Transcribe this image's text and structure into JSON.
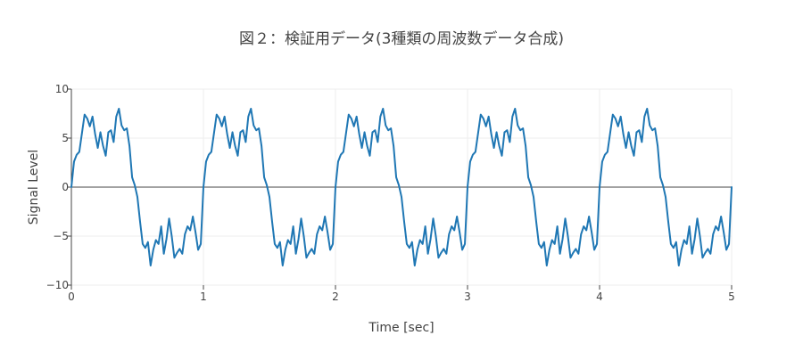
{
  "chart_data": {
    "type": "line",
    "title": "図２：検証用データ(3種類の周波数データ合成)",
    "xlabel": "Time [sec]",
    "ylabel": "Signal Level",
    "xlim": [
      0,
      5
    ],
    "ylim": [
      -10,
      10
    ],
    "x_ticks": [
      0,
      1,
      2,
      3,
      4,
      5
    ],
    "x_tick_labels": [
      "0",
      "1",
      "2",
      "3",
      "4",
      "5"
    ],
    "y_ticks": [
      -10,
      -5,
      0,
      5,
      10
    ],
    "y_tick_labels": [
      "−10",
      "−5",
      "0",
      "5",
      "10"
    ],
    "grid": true,
    "legend": "none",
    "series_color": "#1f77b4",
    "series": [
      {
        "x": [
          0.0,
          0.02,
          0.04,
          0.06,
          0.08,
          0.1,
          0.12,
          0.14,
          0.16,
          0.18,
          0.2,
          0.22,
          0.24,
          0.26,
          0.28,
          0.3,
          0.32,
          0.34,
          0.36,
          0.38,
          0.4,
          0.42,
          0.44,
          0.46,
          0.48,
          0.5,
          0.52,
          0.54,
          0.56,
          0.58,
          0.6,
          0.62,
          0.64,
          0.66,
          0.68,
          0.7,
          0.72,
          0.74,
          0.76,
          0.78,
          0.8,
          0.82,
          0.84,
          0.86,
          0.88,
          0.9,
          0.92,
          0.94,
          0.96,
          0.98,
          1.0,
          1.02,
          1.04,
          1.06,
          1.08,
          1.1,
          1.12,
          1.14,
          1.16,
          1.18,
          1.2,
          1.22,
          1.24,
          1.26,
          1.28,
          1.3,
          1.32,
          1.34,
          1.36,
          1.38,
          1.4,
          1.42,
          1.44,
          1.46,
          1.48,
          1.5,
          1.52,
          1.54,
          1.56,
          1.58,
          1.6,
          1.62,
          1.64,
          1.66,
          1.68,
          1.7,
          1.72,
          1.74,
          1.76,
          1.78,
          1.8,
          1.82,
          1.84,
          1.86,
          1.88,
          1.9,
          1.92,
          1.94,
          1.96,
          1.98,
          2.0,
          2.02,
          2.04,
          2.06,
          2.08,
          2.1,
          2.12,
          2.14,
          2.16,
          2.18,
          2.2,
          2.22,
          2.24,
          2.26,
          2.28,
          2.3,
          2.32,
          2.34,
          2.36,
          2.38,
          2.4,
          2.42,
          2.44,
          2.46,
          2.48,
          2.5,
          2.52,
          2.54,
          2.56,
          2.58,
          2.6,
          2.62,
          2.64,
          2.66,
          2.68,
          2.7,
          2.72,
          2.74,
          2.76,
          2.78,
          2.8,
          2.82,
          2.84,
          2.86,
          2.88,
          2.9,
          2.92,
          2.94,
          2.96,
          2.98,
          3.0,
          3.02,
          3.04,
          3.06,
          3.08,
          3.1,
          3.12,
          3.14,
          3.16,
          3.18,
          3.2,
          3.22,
          3.24,
          3.26,
          3.28,
          3.3,
          3.32,
          3.34,
          3.36,
          3.38,
          3.4,
          3.42,
          3.44,
          3.46,
          3.48,
          3.5,
          3.52,
          3.54,
          3.56,
          3.58,
          3.6,
          3.62,
          3.64,
          3.66,
          3.68,
          3.7,
          3.72,
          3.74,
          3.76,
          3.78,
          3.8,
          3.82,
          3.84,
          3.86,
          3.88,
          3.9,
          3.92,
          3.94,
          3.96,
          3.98,
          4.0,
          4.02,
          4.04,
          4.06,
          4.08,
          4.1,
          4.12,
          4.14,
          4.16,
          4.18,
          4.2,
          4.22,
          4.24,
          4.26,
          4.28,
          4.3,
          4.32,
          4.34,
          4.36,
          4.38,
          4.4,
          4.42,
          4.44,
          4.46,
          4.48,
          4.5,
          4.52,
          4.54,
          4.56,
          4.58,
          4.6,
          4.62,
          4.64,
          4.66,
          4.68,
          4.7,
          4.72,
          4.74,
          4.76,
          4.78,
          4.8,
          4.82,
          4.84,
          4.86,
          4.88,
          4.9,
          4.92,
          4.94,
          4.96,
          4.98,
          5.0
        ],
        "y": [
          0.0,
          2.6,
          3.3,
          3.6,
          5.5,
          7.4,
          7.0,
          6.2,
          7.2,
          5.4,
          4.0,
          5.6,
          4.2,
          3.2,
          5.6,
          5.8,
          4.6,
          7.2,
          8.0,
          6.3,
          5.8,
          6.0,
          4.2,
          1.0,
          0.2,
          -1.0,
          -3.5,
          -5.8,
          -6.2,
          -5.6,
          -8.0,
          -6.4,
          -5.4,
          -5.8,
          -4.0,
          -6.8,
          -5.3,
          -3.2,
          -5.0,
          -7.2,
          -6.7,
          -6.3,
          -6.8,
          -4.8,
          -4.0,
          -4.4,
          -3.0,
          -4.6,
          -6.4,
          -5.8,
          0.0,
          2.6,
          3.3,
          3.6,
          5.5,
          7.4,
          7.0,
          6.2,
          7.2,
          5.4,
          4.0,
          5.6,
          4.2,
          3.2,
          5.6,
          5.8,
          4.6,
          7.2,
          8.0,
          6.3,
          5.8,
          6.0,
          4.2,
          1.0,
          0.2,
          -1.0,
          -3.5,
          -5.8,
          -6.2,
          -5.6,
          -8.0,
          -6.4,
          -5.4,
          -5.8,
          -4.0,
          -6.8,
          -5.3,
          -3.2,
          -5.0,
          -7.2,
          -6.7,
          -6.3,
          -6.8,
          -4.8,
          -4.0,
          -4.4,
          -3.0,
          -4.6,
          -6.4,
          -5.8,
          0.0,
          2.6,
          3.3,
          3.6,
          5.5,
          7.4,
          7.0,
          6.2,
          7.2,
          5.4,
          4.0,
          5.6,
          4.2,
          3.2,
          5.6,
          5.8,
          4.6,
          7.2,
          8.0,
          6.3,
          5.8,
          6.0,
          4.2,
          1.0,
          0.2,
          -1.0,
          -3.5,
          -5.8,
          -6.2,
          -5.6,
          -8.0,
          -6.4,
          -5.4,
          -5.8,
          -4.0,
          -6.8,
          -5.3,
          -3.2,
          -5.0,
          -7.2,
          -6.7,
          -6.3,
          -6.8,
          -4.8,
          -4.0,
          -4.4,
          -3.0,
          -4.6,
          -6.4,
          -5.8,
          0.0,
          2.6,
          3.3,
          3.6,
          5.5,
          7.4,
          7.0,
          6.2,
          7.2,
          5.4,
          4.0,
          5.6,
          4.2,
          3.2,
          5.6,
          5.8,
          4.6,
          7.2,
          8.0,
          6.3,
          5.8,
          6.0,
          4.2,
          1.0,
          0.2,
          -1.0,
          -3.5,
          -5.8,
          -6.2,
          -5.6,
          -8.0,
          -6.4,
          -5.4,
          -5.8,
          -4.0,
          -6.8,
          -5.3,
          -3.2,
          -5.0,
          -7.2,
          -6.7,
          -6.3,
          -6.8,
          -4.8,
          -4.0,
          -4.4,
          -3.0,
          -4.6,
          -6.4,
          -5.8,
          0.0,
          2.6,
          3.3,
          3.6,
          5.5,
          7.4,
          7.0,
          6.2,
          7.2,
          5.4,
          4.0,
          5.6,
          4.2,
          3.2,
          5.6,
          5.8,
          4.6,
          7.2,
          8.0,
          6.3,
          5.8,
          6.0,
          4.2,
          1.0,
          0.2,
          -1.0,
          -3.5,
          -5.8,
          -6.2,
          -5.6,
          -8.0,
          -6.4,
          -5.4,
          -5.8,
          -4.0,
          -6.8,
          -5.3,
          -3.2,
          -5.0,
          -7.2,
          -6.7,
          -6.3,
          -6.8,
          -4.8,
          -4.0,
          -4.4,
          -3.0,
          -4.6,
          -6.4,
          -5.8,
          0.0
        ]
      }
    ]
  }
}
